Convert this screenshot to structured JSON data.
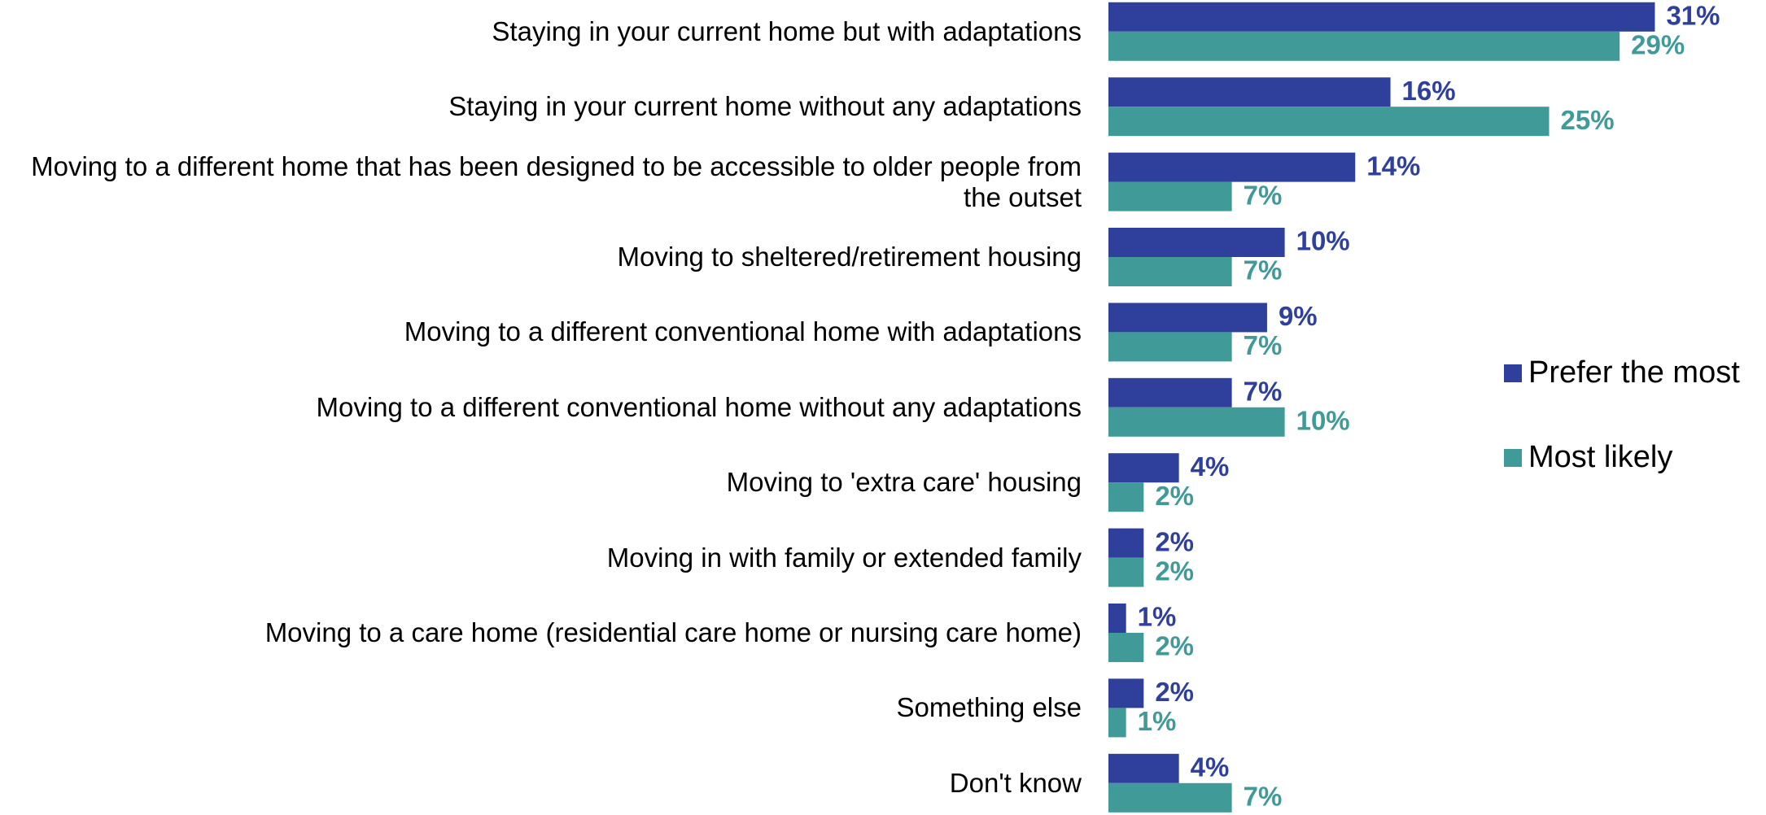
{
  "chart_data": {
    "type": "hbar",
    "categories": [
      "Staying in your current home but with adaptations",
      "Staying in your current home without any adaptations",
      "Moving to a different home that has been designed to be accessible to older people from the outset",
      "Moving to sheltered/retirement housing",
      "Moving to a different conventional home with adaptations",
      "Moving to a different conventional home without any adaptations",
      "Moving to 'extra care' housing",
      "Moving in with family or extended family",
      "Moving to a care home (residential care home or nursing care home)",
      "Something else",
      "Don't know"
    ],
    "series": [
      {
        "name": "Prefer the most",
        "color": "#2e3f9c",
        "values": [
          31,
          16,
          14,
          10,
          9,
          7,
          4,
          2,
          1,
          2,
          4
        ],
        "value_labels": [
          "31%",
          "16%",
          "14%",
          "10%",
          "9%",
          "7%",
          "4%",
          "2%",
          "1%",
          "2%",
          "4%"
        ]
      },
      {
        "name": "Most likely",
        "color": "#3f9a98",
        "values": [
          29,
          25,
          7,
          7,
          7,
          10,
          2,
          2,
          2,
          1,
          7
        ],
        "value_labels": [
          "29%",
          "25%",
          "7%",
          "7%",
          "7%",
          "10%",
          "2%",
          "2%",
          "2%",
          "1%",
          "7%"
        ]
      }
    ],
    "legend": "right"
  }
}
